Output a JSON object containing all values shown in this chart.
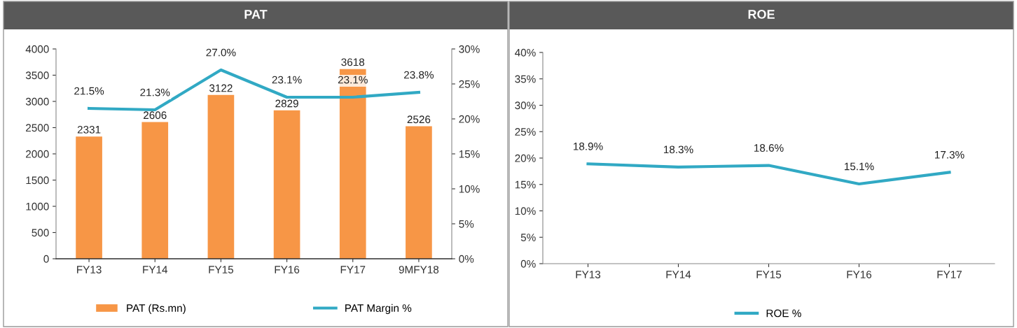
{
  "chart_data": [
    {
      "type": "bar",
      "title": "PAT",
      "categories": [
        "FY13",
        "FY14",
        "FY15",
        "FY16",
        "FY17",
        "9MFY18"
      ],
      "series": [
        {
          "name": "PAT (Rs.mn)",
          "color": "#f79646",
          "values": [
            2331,
            2606,
            3122,
            2829,
            3618,
            2526
          ],
          "value_labels": [
            "2331",
            "2606",
            "3122",
            "2829",
            "3618",
            "2526"
          ]
        },
        {
          "name": "PAT Margin %",
          "type": "line",
          "axis": "y2",
          "color": "#31a9c4",
          "values": [
            21.5,
            21.3,
            27.0,
            23.1,
            23.1,
            23.8
          ],
          "value_labels": [
            "21.5%",
            "21.3%",
            "27.0%",
            "23.1%",
            "23.1%",
            "23.8%"
          ]
        }
      ],
      "ylim": [
        0,
        4000
      ],
      "yticks": [
        0,
        500,
        1000,
        1500,
        2000,
        2500,
        3000,
        3500,
        4000
      ],
      "y2lim": [
        0,
        30
      ],
      "y2ticks": [
        {
          "value": 0,
          "label": "0%"
        },
        {
          "value": 5,
          "label": "5%"
        },
        {
          "value": 10,
          "label": "10%"
        },
        {
          "value": 15,
          "label": "15%"
        },
        {
          "value": 20,
          "label": "20%"
        },
        {
          "value": 25,
          "label": "25%"
        },
        {
          "value": 30,
          "label": "30%"
        }
      ],
      "legend": "bottom",
      "grid": false
    },
    {
      "type": "line",
      "title": "ROE",
      "categories": [
        "FY13",
        "FY14",
        "FY15",
        "FY16",
        "FY17"
      ],
      "series": [
        {
          "name": "ROE %",
          "color": "#31a9c4",
          "values": [
            18.9,
            18.3,
            18.6,
            15.1,
            17.3
          ],
          "value_labels": [
            "18.9%",
            "18.3%",
            "18.6%",
            "15.1%",
            "17.3%"
          ]
        }
      ],
      "ylim": [
        0,
        40
      ],
      "yticks": [
        {
          "value": 0,
          "label": "0%"
        },
        {
          "value": 5,
          "label": "5%"
        },
        {
          "value": 10,
          "label": "10%"
        },
        {
          "value": 15,
          "label": "15%"
        },
        {
          "value": 20,
          "label": "20%"
        },
        {
          "value": 25,
          "label": "25%"
        },
        {
          "value": 30,
          "label": "30%"
        },
        {
          "value": 35,
          "label": "35%"
        },
        {
          "value": 40,
          "label": "40%"
        }
      ],
      "legend": "bottom",
      "grid": false
    }
  ]
}
